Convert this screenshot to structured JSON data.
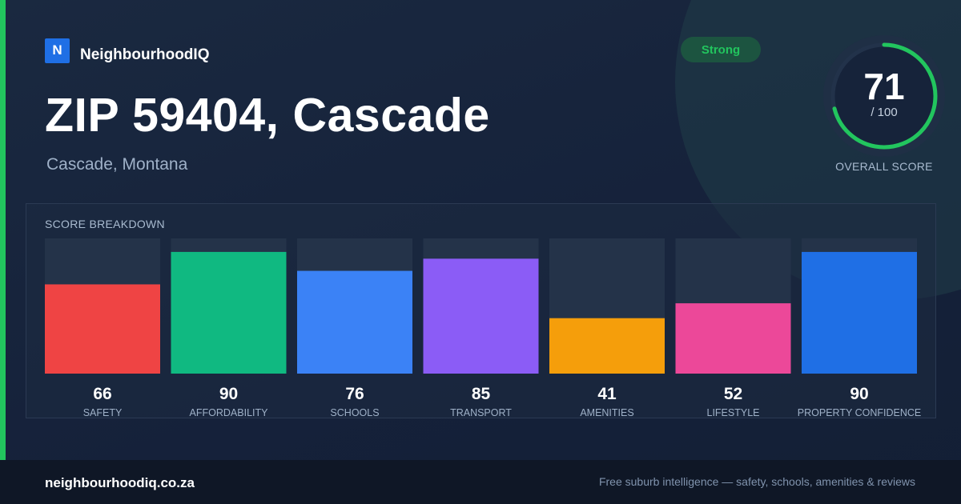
{
  "brand": {
    "logo_letter": "N",
    "name": "NeighbourhoodIQ"
  },
  "header": {
    "title": "ZIP 59404, Cascade",
    "subtitle": "Cascade, Montana"
  },
  "badge": {
    "label": "Strong"
  },
  "overall": {
    "score": "71",
    "denominator": "/ 100",
    "label": "OVERALL SCORE",
    "value": 71,
    "max": 100
  },
  "colors": {
    "accent": "#22c55e",
    "ring_track": "#22324a"
  },
  "chart_data": {
    "type": "bar",
    "title": "SCORE BREAKDOWN",
    "categories": [
      "SAFETY",
      "AFFORDABILITY",
      "SCHOOLS",
      "TRANSPORT",
      "AMENITIES",
      "LIFESTYLE",
      "PROPERTY CONFIDENCE"
    ],
    "values": [
      66,
      90,
      76,
      85,
      41,
      52,
      90
    ],
    "colors": [
      "#ef4444",
      "#10b981",
      "#3b82f6",
      "#8b5cf6",
      "#f59e0b",
      "#ec4899",
      "#1f6fe5"
    ],
    "ylim": [
      0,
      100
    ],
    "grid": false
  },
  "footer": {
    "domain": "neighbourhoodiq.co.za",
    "tagline": "Free suburb intelligence — safety, schools, amenities & reviews"
  }
}
